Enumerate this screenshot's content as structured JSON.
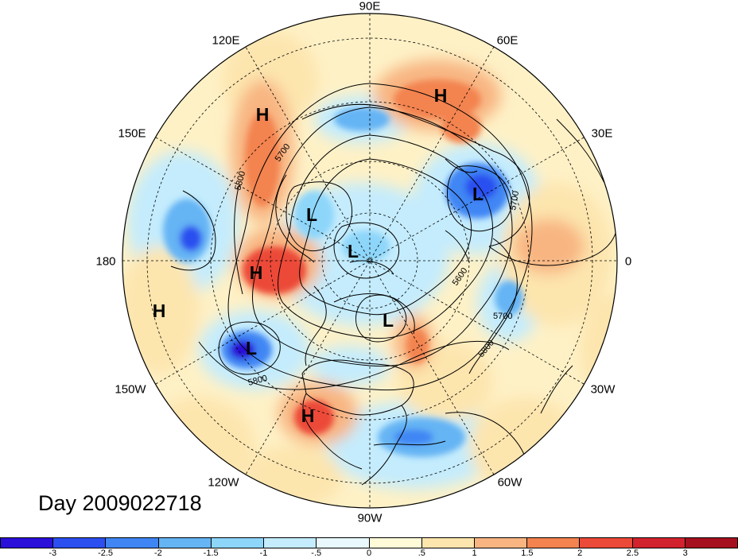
{
  "map": {
    "longitude_labels": {
      "lon_90E": "90E",
      "lon_60E": "60E",
      "lon_30E": "30E",
      "lon_0": "0",
      "lon_30W": "30W",
      "lon_60W": "60W",
      "lon_90W": "90W",
      "lon_120W": "120W",
      "lon_150W": "150W",
      "lon_180": "180",
      "lon_150E": "150E",
      "lon_120E": "120E"
    },
    "title": "Day 2009022718",
    "pressure_systems": [
      {
        "label": "H",
        "region": "northern Siberia"
      },
      {
        "label": "H",
        "region": "Sea of Okhotsk / Kamchatka"
      },
      {
        "label": "L",
        "region": "Europe"
      },
      {
        "label": "L",
        "region": "East Siberian Arctic"
      },
      {
        "label": "L",
        "region": "Arctic Ocean"
      },
      {
        "label": "H",
        "region": "Bering Sea"
      },
      {
        "label": "L",
        "region": "Canadian Arctic"
      },
      {
        "label": "H",
        "region": "central North Pacific"
      },
      {
        "label": "L",
        "region": "Gulf of Alaska"
      },
      {
        "label": "H",
        "region": "southwestern United States"
      }
    ],
    "contour_labels": [
      "5700",
      "5800",
      "5700",
      "5600",
      "5700",
      "5800",
      "5800"
    ],
    "colorbar": {
      "colors": [
        "#2a10d8",
        "#2c4ff0",
        "#3f86f4",
        "#65b4f4",
        "#8dd6fa",
        "#c4ecfd",
        "#e8f8fc",
        "#fffad8",
        "#fde5ae",
        "#f8b582",
        "#f3834f",
        "#ec4a38",
        "#d2222e",
        "#a6101f"
      ],
      "tick_labels": [
        "-3",
        "-2.5",
        "-2",
        "-1.5",
        "-1",
        "-.5",
        "0",
        ".5",
        "1",
        "1.5",
        "2",
        "2.5",
        "3"
      ]
    }
  }
}
